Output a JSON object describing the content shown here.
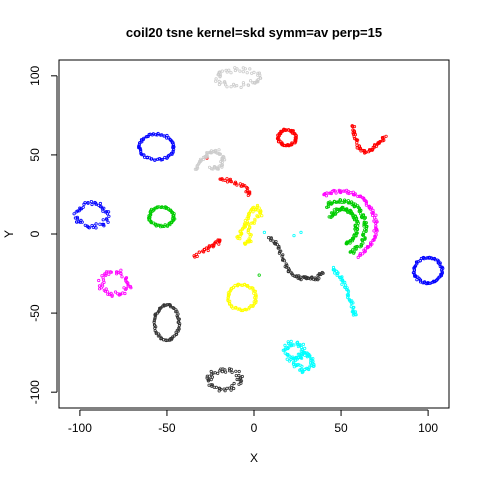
{
  "chart_data": {
    "type": "scatter",
    "title": "coil20 tsne kernel=skd symm=av perp=15",
    "xlabel": "X",
    "ylabel": "Y",
    "xlim": [
      -112,
      112
    ],
    "ylim": [
      -110,
      110
    ],
    "x_ticks": [
      -100,
      -50,
      0,
      50,
      100
    ],
    "y_ticks": [
      -100,
      -50,
      0,
      50,
      100
    ],
    "x_tick_labels": [
      "-100",
      "-50",
      "0",
      "50",
      "100"
    ],
    "y_tick_labels": [
      "-100",
      "-50",
      "0",
      "50",
      "100"
    ],
    "grid": false,
    "legend": "none",
    "marker": "open-circle",
    "clusters": [
      {
        "color": "#0000ff",
        "shape": "ring",
        "center": [
          -56,
          55
        ],
        "radius": [
          10,
          8
        ]
      },
      {
        "color": "#0000ff",
        "shape": "blob",
        "center": [
          -93,
          12
        ],
        "radius": [
          9,
          7
        ]
      },
      {
        "color": "#0000ff",
        "shape": "ring",
        "center": [
          100,
          -23
        ],
        "radius": [
          8,
          8
        ]
      },
      {
        "color": "#00cc00",
        "shape": "ring",
        "center": [
          -53,
          11
        ],
        "radius": [
          7,
          6
        ]
      },
      {
        "color": "#ff00ff",
        "shape": "blob",
        "center": [
          -80,
          -31
        ],
        "radius": [
          8,
          7
        ]
      },
      {
        "color": "#ff00ff",
        "shape": "arc",
        "center": [
          50,
          5
        ],
        "radius": [
          20,
          22
        ],
        "arc": [
          -60,
          120
        ]
      },
      {
        "color": "#00cc00",
        "shape": "arc",
        "center": [
          50,
          4
        ],
        "radius": [
          14,
          17
        ],
        "arc": [
          -70,
          130
        ]
      },
      {
        "color": "#00cc00",
        "shape": "arc",
        "center": [
          51,
          5
        ],
        "radius": [
          8,
          11
        ],
        "arc": [
          -80,
          150
        ]
      },
      {
        "color": "#00cc00",
        "shape": "dot",
        "center": [
          3,
          -26
        ]
      },
      {
        "color": "#ff0000",
        "shape": "ring",
        "center": [
          19,
          61
        ],
        "radius": [
          5,
          5
        ]
      },
      {
        "color": "#ff0000",
        "shape": "path",
        "points": [
          [
            57,
            69
          ],
          [
            58,
            62
          ],
          [
            60,
            55
          ],
          [
            64,
            52
          ],
          [
            68,
            54
          ],
          [
            72,
            58
          ],
          [
            76,
            62
          ]
        ]
      },
      {
        "color": "#ff0000",
        "shape": "path",
        "points": [
          [
            -20,
            35
          ],
          [
            -12,
            33
          ],
          [
            -5,
            30
          ],
          [
            -2,
            24
          ]
        ]
      },
      {
        "color": "#ff0000",
        "shape": "path",
        "points": [
          [
            -35,
            -14
          ],
          [
            -27,
            -10
          ],
          [
            -22,
            -6
          ],
          [
            -19,
            -4
          ]
        ]
      },
      {
        "color": "#ff0000",
        "shape": "dot",
        "center": [
          -27,
          48
        ]
      },
      {
        "color": "#cccccc",
        "shape": "blob",
        "center": [
          -9,
          99
        ],
        "radius": [
          12,
          5
        ]
      },
      {
        "color": "#cccccc",
        "shape": "path",
        "points": [
          [
            -33,
            41
          ],
          [
            -30,
            47
          ],
          [
            -26,
            51
          ],
          [
            -21,
            53
          ],
          [
            -17,
            47
          ],
          [
            -20,
            42
          ],
          [
            -25,
            42
          ]
        ]
      },
      {
        "color": "#ffff00",
        "shape": "ring",
        "center": [
          -7,
          -40
        ],
        "radius": [
          8,
          8
        ]
      },
      {
        "color": "#ffff00",
        "shape": "path",
        "points": [
          [
            -9,
            -3
          ],
          [
            -7,
            2
          ],
          [
            -4,
            8
          ],
          [
            -2,
            14
          ],
          [
            2,
            17
          ],
          [
            4,
            12
          ],
          [
            -3,
            5
          ],
          [
            -2,
            -5
          ],
          [
            -6,
            -6
          ]
        ]
      },
      {
        "color": "#00ffff",
        "shape": "path",
        "points": [
          [
            46,
            -22
          ],
          [
            49,
            -27
          ],
          [
            52,
            -32
          ],
          [
            55,
            -40
          ],
          [
            57,
            -48
          ],
          [
            58,
            -52
          ]
        ]
      },
      {
        "color": "#00ffff",
        "shape": "blob",
        "center": [
          23,
          -74
        ],
        "radius": [
          5,
          5
        ]
      },
      {
        "color": "#00ffff",
        "shape": "blob",
        "center": [
          29,
          -81
        ],
        "radius": [
          5,
          5
        ]
      },
      {
        "color": "#00ffff",
        "shape": "dot",
        "center": [
          6,
          1
        ]
      },
      {
        "color": "#00ffff",
        "shape": "dot",
        "center": [
          23,
          -1
        ]
      },
      {
        "color": "#00ffff",
        "shape": "dot",
        "center": [
          27,
          1
        ]
      },
      {
        "color": "#333333",
        "shape": "ring",
        "center": [
          -50,
          -56
        ],
        "radius": [
          7,
          11
        ]
      },
      {
        "color": "#333333",
        "shape": "path",
        "points": [
          [
            9,
            -2
          ],
          [
            14,
            -8
          ],
          [
            17,
            -17
          ],
          [
            21,
            -25
          ],
          [
            26,
            -28
          ],
          [
            31,
            -28
          ],
          [
            36,
            -28
          ],
          [
            40,
            -24
          ]
        ]
      },
      {
        "color": "#333333",
        "shape": "blob",
        "center": [
          -17,
          -92
        ],
        "radius": [
          9,
          6
        ]
      }
    ]
  }
}
